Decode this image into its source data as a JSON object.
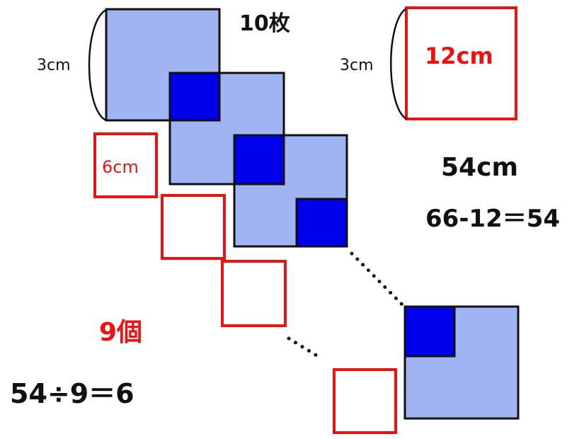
{
  "labels": {
    "count": "10枚",
    "side_left": "3cm",
    "side_right": "3cm",
    "big_square_perimeter": "12cm",
    "small_square_perimeter": "6cm",
    "result": "54cm",
    "subtraction": "66-12＝54",
    "pieces": "9個",
    "division": "54÷9＝6"
  },
  "colors": {
    "light_fill": "#a0b4f4",
    "dark_fill": "#0000ee",
    "outline": "#111111",
    "red": "#ee1111"
  }
}
